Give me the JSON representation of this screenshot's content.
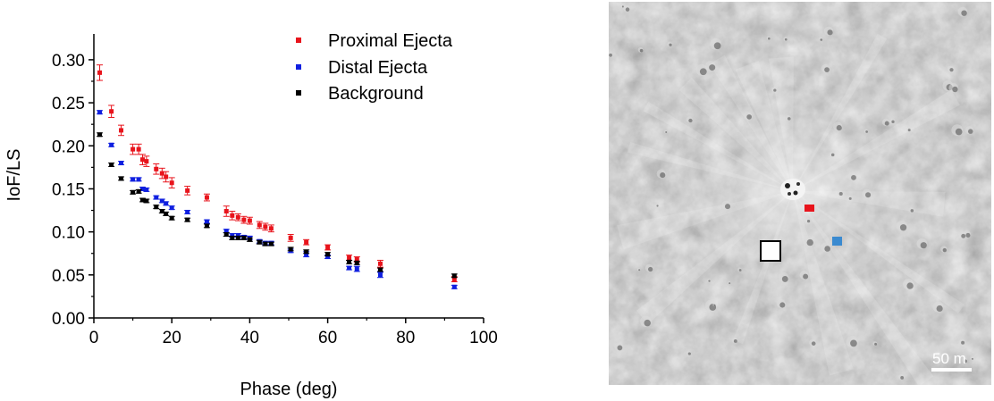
{
  "chart_data": {
    "type": "scatter",
    "xlabel": "Phase (deg)",
    "ylabel": "IoF/LS",
    "xlim": [
      0,
      100
    ],
    "ylim": [
      0,
      0.33
    ],
    "x_ticks": [
      "0",
      "20",
      "40",
      "60",
      "80",
      "100"
    ],
    "y_ticks": [
      "0.00",
      "0.05",
      "0.10",
      "0.15",
      "0.20",
      "0.25",
      "0.30"
    ],
    "legend_position": "top-right",
    "series": [
      {
        "name": "Proximal Ejecta",
        "color": "#e8141c",
        "points": [
          [
            1.5,
            0.285,
            0.009
          ],
          [
            4.5,
            0.24,
            0.007
          ],
          [
            7.0,
            0.218,
            0.006
          ],
          [
            10.0,
            0.196,
            0.006
          ],
          [
            11.5,
            0.196,
            0.006
          ],
          [
            12.5,
            0.184,
            0.006
          ],
          [
            13.5,
            0.182,
            0.006
          ],
          [
            16.0,
            0.173,
            0.006
          ],
          [
            17.5,
            0.168,
            0.006
          ],
          [
            18.5,
            0.164,
            0.006
          ],
          [
            20.0,
            0.157,
            0.006
          ],
          [
            24.0,
            0.148,
            0.005
          ],
          [
            29.0,
            0.14,
            0.004
          ],
          [
            34.0,
            0.124,
            0.006
          ],
          [
            35.5,
            0.119,
            0.005
          ],
          [
            37.0,
            0.117,
            0.004
          ],
          [
            38.5,
            0.114,
            0.004
          ],
          [
            40.0,
            0.113,
            0.004
          ],
          [
            42.5,
            0.108,
            0.004
          ],
          [
            44.0,
            0.106,
            0.004
          ],
          [
            45.5,
            0.104,
            0.004
          ],
          [
            50.5,
            0.093,
            0.004
          ],
          [
            54.5,
            0.088,
            0.003
          ],
          [
            60.0,
            0.082,
            0.003
          ],
          [
            65.5,
            0.07,
            0.003
          ],
          [
            67.5,
            0.068,
            0.003
          ],
          [
            73.5,
            0.063,
            0.004
          ],
          [
            92.5,
            0.045,
            0.003
          ]
        ]
      },
      {
        "name": "Distal Ejecta",
        "color": "#1020e0",
        "points": [
          [
            1.5,
            0.239,
            0.002
          ],
          [
            4.5,
            0.201,
            0.002
          ],
          [
            7.0,
            0.18,
            0.002
          ],
          [
            10.0,
            0.161,
            0.002
          ],
          [
            11.5,
            0.161,
            0.002
          ],
          [
            12.5,
            0.15,
            0.002
          ],
          [
            13.5,
            0.149,
            0.002
          ],
          [
            16.0,
            0.14,
            0.002
          ],
          [
            17.5,
            0.136,
            0.002
          ],
          [
            18.5,
            0.133,
            0.002
          ],
          [
            20.0,
            0.128,
            0.002
          ],
          [
            24.0,
            0.123,
            0.002
          ],
          [
            29.0,
            0.112,
            0.002
          ],
          [
            34.0,
            0.101,
            0.002
          ],
          [
            35.5,
            0.096,
            0.002
          ],
          [
            37.0,
            0.096,
            0.002
          ],
          [
            38.5,
            0.094,
            0.002
          ],
          [
            40.0,
            0.093,
            0.002
          ],
          [
            42.5,
            0.089,
            0.002
          ],
          [
            44.0,
            0.087,
            0.002
          ],
          [
            45.5,
            0.087,
            0.002
          ],
          [
            50.5,
            0.078,
            0.002
          ],
          [
            54.5,
            0.074,
            0.003
          ],
          [
            60.0,
            0.071,
            0.002
          ],
          [
            65.5,
            0.058,
            0.002
          ],
          [
            67.5,
            0.057,
            0.003
          ],
          [
            73.5,
            0.05,
            0.003
          ],
          [
            92.5,
            0.036,
            0.002
          ]
        ]
      },
      {
        "name": "Background",
        "color": "#000000",
        "points": [
          [
            1.5,
            0.213,
            0.002
          ],
          [
            4.5,
            0.178,
            0.002
          ],
          [
            7.0,
            0.162,
            0.002
          ],
          [
            10.0,
            0.146,
            0.002
          ],
          [
            11.5,
            0.147,
            0.002
          ],
          [
            12.5,
            0.137,
            0.002
          ],
          [
            13.5,
            0.136,
            0.002
          ],
          [
            16.0,
            0.129,
            0.002
          ],
          [
            17.5,
            0.124,
            0.002
          ],
          [
            18.5,
            0.121,
            0.002
          ],
          [
            20.0,
            0.116,
            0.002
          ],
          [
            24.0,
            0.114,
            0.002
          ],
          [
            29.0,
            0.107,
            0.002
          ],
          [
            34.0,
            0.097,
            0.002
          ],
          [
            35.5,
            0.093,
            0.002
          ],
          [
            37.0,
            0.093,
            0.002
          ],
          [
            38.5,
            0.093,
            0.002
          ],
          [
            40.0,
            0.091,
            0.002
          ],
          [
            42.5,
            0.088,
            0.002
          ],
          [
            44.0,
            0.086,
            0.002
          ],
          [
            45.5,
            0.086,
            0.002
          ],
          [
            50.5,
            0.08,
            0.002
          ],
          [
            54.5,
            0.077,
            0.002
          ],
          [
            60.0,
            0.074,
            0.002
          ],
          [
            65.5,
            0.065,
            0.002
          ],
          [
            67.5,
            0.064,
            0.002
          ],
          [
            73.5,
            0.056,
            0.002
          ],
          [
            92.5,
            0.049,
            0.002
          ]
        ]
      }
    ]
  },
  "image_panel": {
    "scale_bar_label": "50 m",
    "marker_proximal_color": "#e8141c",
    "marker_distal_color": "#3a8ad0",
    "marker_background_color": "#ffffff"
  }
}
